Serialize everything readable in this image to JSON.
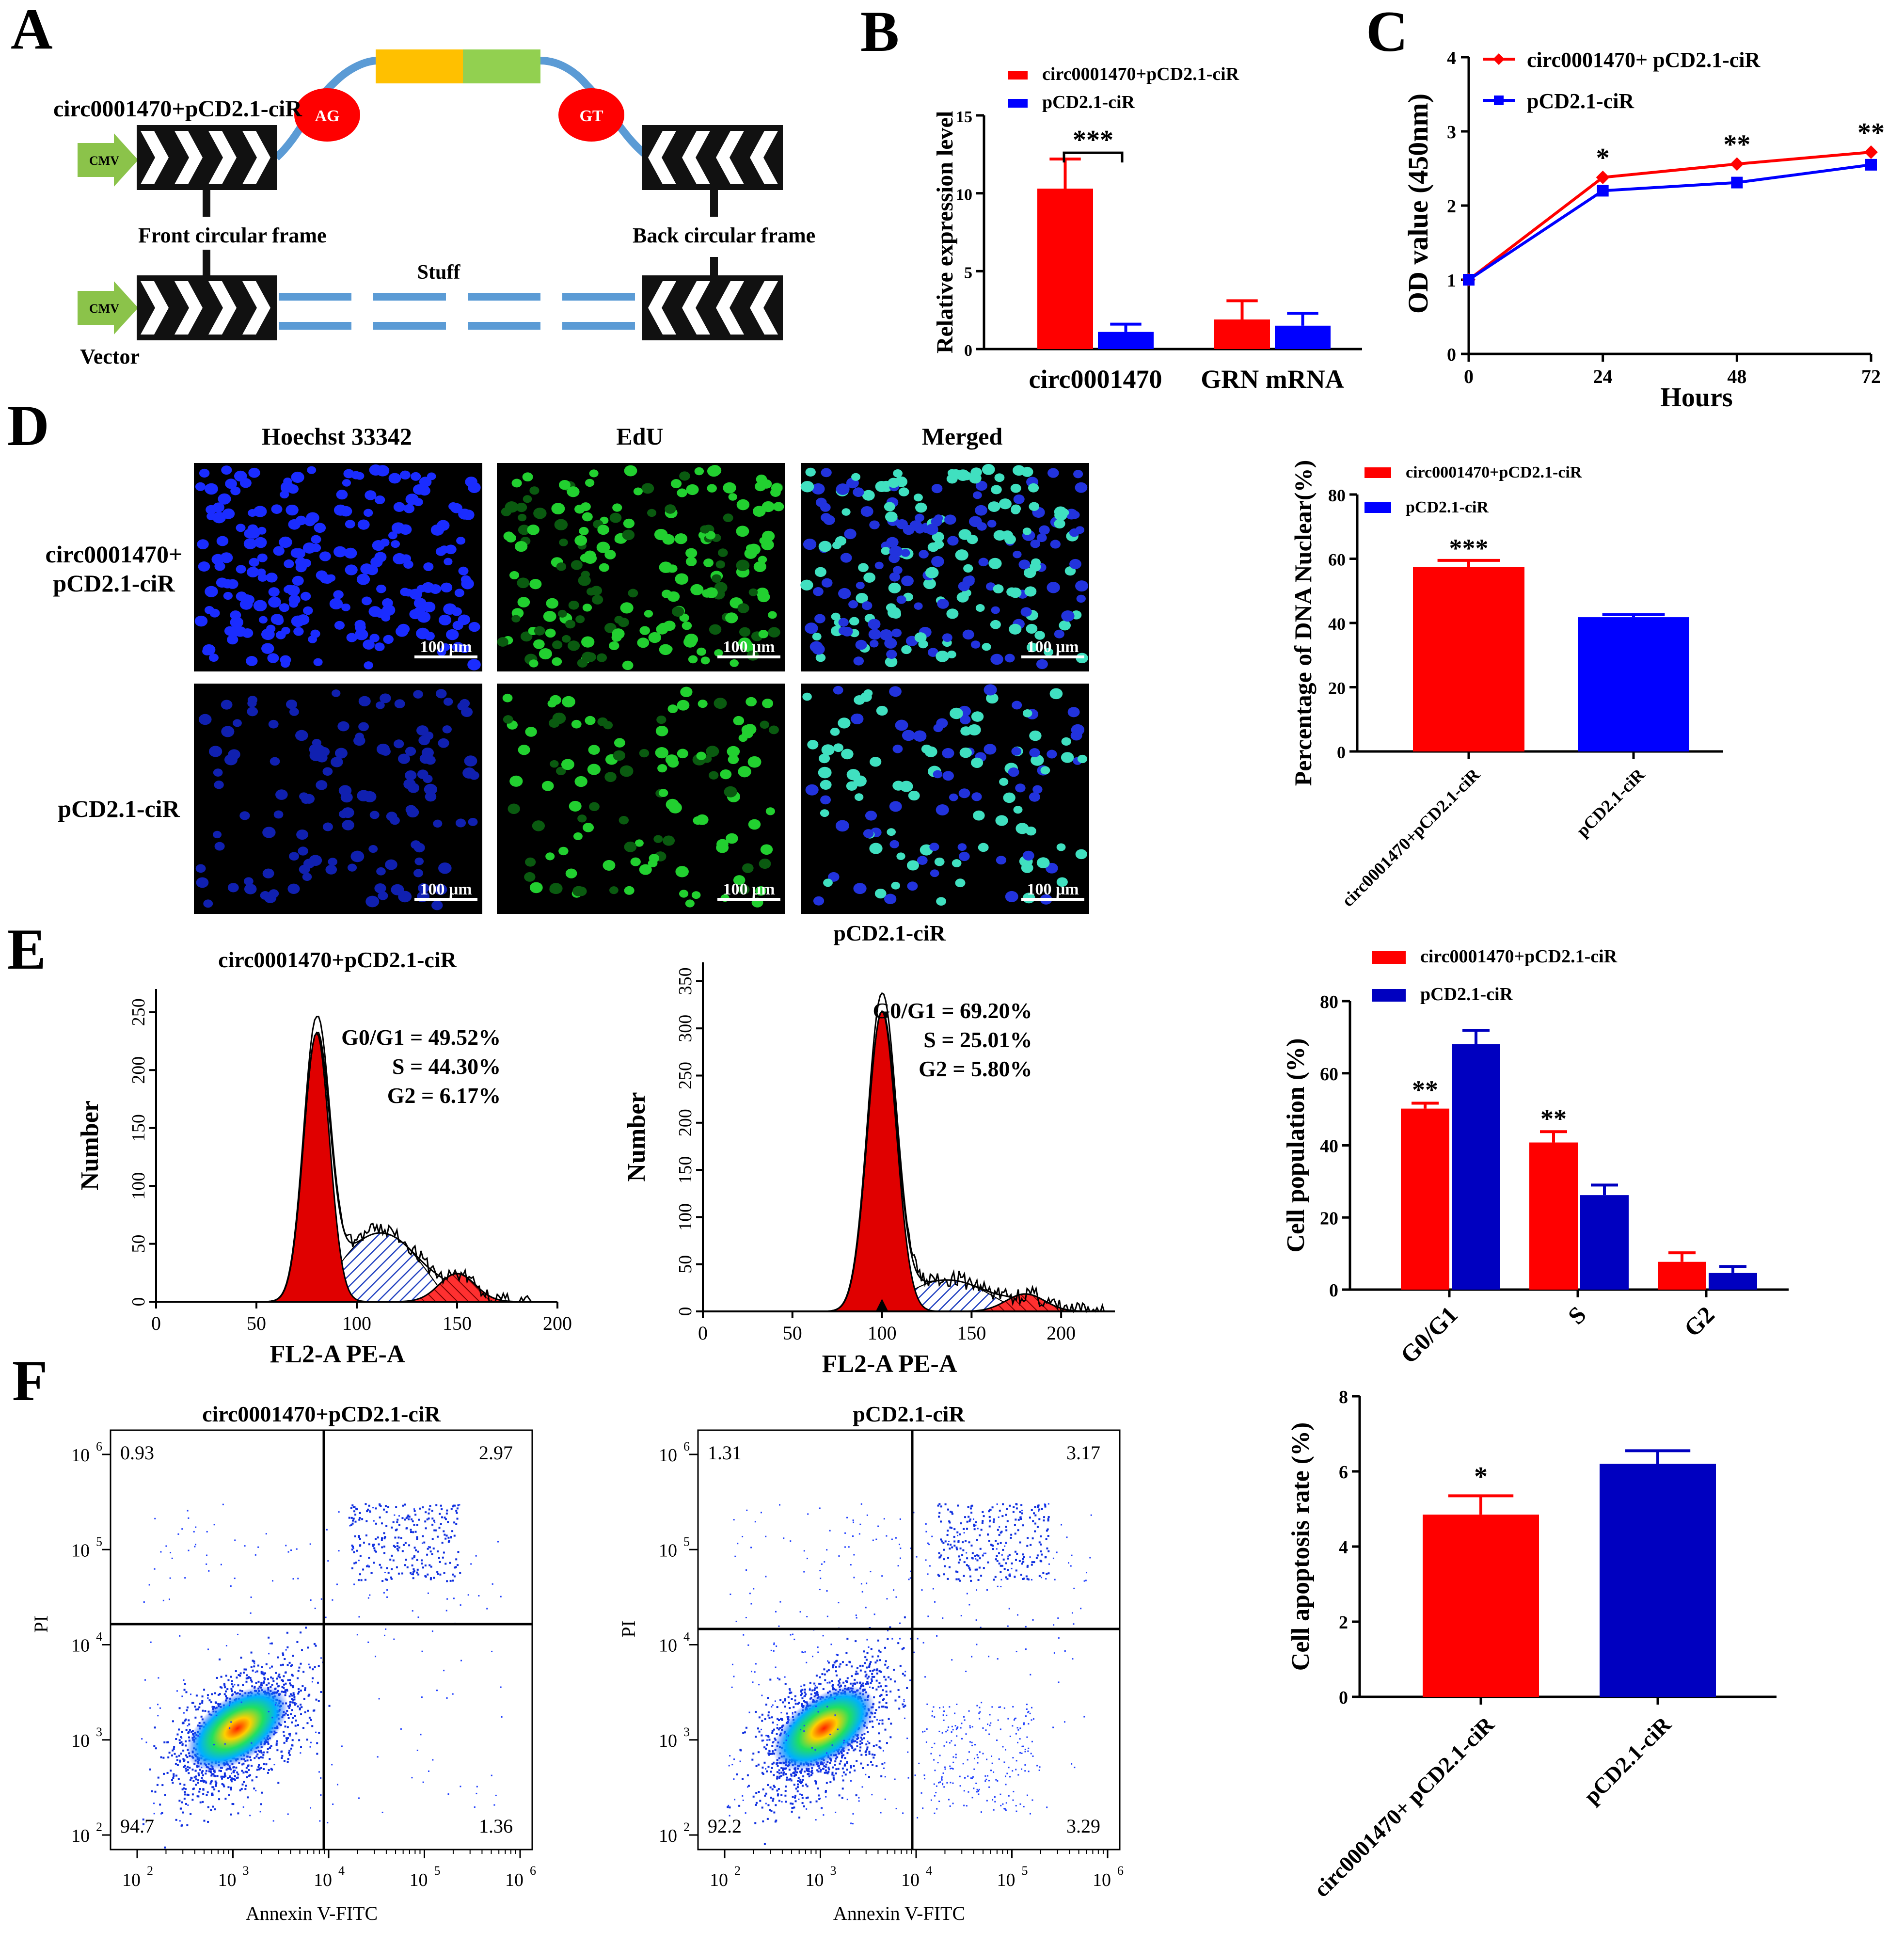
{
  "colors": {
    "red": "#ff0000",
    "blue": "#0000ff",
    "navy": "#0000c0",
    "green_arrow": "#8bc34a",
    "orange_box": "#ffc000",
    "green_box": "#92d050",
    "loop": "#5b9bd5",
    "frame_black": "#111111"
  },
  "panel_letters": [
    "A",
    "B",
    "C",
    "D",
    "E",
    "F"
  ],
  "panelA": {
    "construct_label": "circ0001470+pCD2.1-ciR",
    "cmv": "CMV",
    "ag": "AG",
    "gt": "GT",
    "front_frame": "Front circular frame",
    "back_frame": "Back circular frame",
    "stuff": "Stuff",
    "vector": "Vector"
  },
  "chart_data": [
    {
      "id": "B",
      "type": "bar",
      "categories": [
        "circ0001470",
        "GRN mRNA"
      ],
      "series": [
        {
          "name": "circ0001470+pCD2.1-ciR",
          "values": [
            10.3,
            1.9
          ],
          "errors": [
            1.9,
            1.2
          ],
          "color": "#ff0000"
        },
        {
          "name": "pCD2.1-ciR",
          "values": [
            1.1,
            1.5
          ],
          "errors": [
            0.5,
            0.8
          ],
          "color": "#0000ff"
        }
      ],
      "ylabel": "Relative expression level",
      "ylim": [
        0,
        15
      ],
      "yticks": [
        0,
        5,
        10,
        15
      ],
      "significance": [
        {
          "label": "***",
          "category": "circ0001470"
        }
      ]
    },
    {
      "id": "C",
      "type": "line",
      "x": [
        0,
        24,
        48,
        72
      ],
      "series": [
        {
          "name": "circ0001470+ pCD2.1-ciR",
          "values": [
            1.0,
            2.38,
            2.56,
            2.72
          ],
          "color": "#ff0000",
          "marker": "diamond"
        },
        {
          "name": "pCD2.1-ciR",
          "values": [
            1.0,
            2.2,
            2.31,
            2.55
          ],
          "color": "#0000ff",
          "marker": "square"
        }
      ],
      "xlabel": "Hours",
      "ylabel": "OD value (450nm)",
      "ylim": [
        0,
        4
      ],
      "yticks": [
        0,
        1,
        2,
        3,
        4
      ],
      "xticks": [
        0,
        24,
        48,
        72
      ],
      "significance": [
        "*",
        "**",
        "**"
      ]
    },
    {
      "id": "D_bar",
      "type": "bar",
      "categories": [
        "circ0001470+pCD2.1-ciR",
        "pCD2.1-ciR"
      ],
      "values": [
        57.5,
        41.8
      ],
      "errors": [
        2.0,
        0.8
      ],
      "colors": [
        "#ff0000",
        "#0000ff"
      ],
      "legend": [
        "circ0001470+pCD2.1-ciR",
        "pCD2.1-ciR"
      ],
      "ylabel": "Percentage of DNA Nuclear(%)",
      "ylim": [
        0,
        80
      ],
      "yticks": [
        0,
        20,
        40,
        60,
        80
      ],
      "significance": [
        "***",
        ""
      ]
    },
    {
      "id": "E_bar",
      "type": "bar",
      "categories": [
        "G0/G1",
        "S",
        "G2"
      ],
      "series": [
        {
          "name": "circ0001470+pCD2.1-ciR",
          "values": [
            50.2,
            40.8,
            7.7
          ],
          "errors": [
            1.5,
            3.0,
            2.5
          ],
          "color": "#ff0000"
        },
        {
          "name": "pCD2.1-ciR",
          "values": [
            68.1,
            26.2,
            4.6
          ],
          "errors": [
            3.8,
            2.8,
            1.8
          ],
          "color": "#0000c0"
        }
      ],
      "ylabel": "Cell population (%)",
      "ylim": [
        0,
        80
      ],
      "yticks": [
        0,
        20,
        40,
        60,
        80
      ],
      "significance": [
        "**",
        "**",
        ""
      ]
    },
    {
      "id": "F_bar",
      "type": "bar",
      "categories": [
        "circ0001470+ pCD2.1-ciR",
        "pCD2.1-ciR"
      ],
      "values": [
        4.85,
        6.2
      ],
      "errors": [
        0.5,
        0.35
      ],
      "colors": [
        "#ff0000",
        "#0000c0"
      ],
      "ylabel": "Cell apoptosis rate (%)",
      "ylim": [
        0,
        8
      ],
      "yticks": [
        0,
        2,
        4,
        6,
        8
      ],
      "significance": [
        "*",
        ""
      ]
    },
    {
      "id": "E_hist1",
      "type": "area",
      "title": "circ0001470+pCD2.1-ciR",
      "xlabel": "FL2-A PE-A",
      "ylabel": "Number",
      "xlim": [
        0,
        200
      ],
      "ylim": [
        0,
        270
      ],
      "xticks": [
        0,
        50,
        100,
        150,
        200
      ],
      "yticks": [
        0,
        50,
        100,
        150,
        200,
        250
      ],
      "g1_peak": 80,
      "g2_peak": 150,
      "stats": {
        "g0g1": "G0/G1 = 49.52%",
        "s": "S = 44.30%",
        "g2": "G2 = 6.17%"
      }
    },
    {
      "id": "E_hist2",
      "type": "area",
      "title": "pCD2.1-ciR",
      "xlabel": "FL2-A PE-A",
      "ylabel": "Number",
      "xlim": [
        0,
        230
      ],
      "ylim": [
        0,
        370
      ],
      "xticks": [
        0,
        50,
        100,
        150,
        200
      ],
      "yticks": [
        0,
        50,
        100,
        150,
        200,
        250,
        300,
        350
      ],
      "g1_peak": 100,
      "g2_peak": 180,
      "stats": {
        "g0g1": "G0/G1 = 69.20%",
        "s": "S = 25.01%",
        "g2": "G2 = 5.80%"
      }
    },
    {
      "id": "F_dot1",
      "type": "scatter",
      "title": "circ0001470+pCD2.1-ciR",
      "xlabel": "Annexin V-FITC",
      "ylabel": "PI",
      "ticks": [
        "2",
        "3",
        "4",
        "5",
        "6"
      ],
      "quadrants": {
        "ul": "0.93",
        "ur": "2.97",
        "ll": "94.7",
        "lr": "1.36"
      }
    },
    {
      "id": "F_dot2",
      "type": "scatter",
      "title": "pCD2.1-ciR",
      "xlabel": "Annexin V-FITC",
      "ylabel": "PI",
      "ticks": [
        "2",
        "3",
        "4",
        "5",
        "6"
      ],
      "quadrants": {
        "ul": "1.31",
        "ur": "3.17",
        "ll": "92.2",
        "lr": "3.29"
      }
    }
  ],
  "panelD_images": {
    "columns": [
      "Hoechst 33342",
      "EdU",
      "Merged"
    ],
    "rows": [
      "circ0001470+",
      "pCD2.1-ciR",
      "pCD2.1-ciR"
    ],
    "scale": "100 μm"
  },
  "ten": "10"
}
